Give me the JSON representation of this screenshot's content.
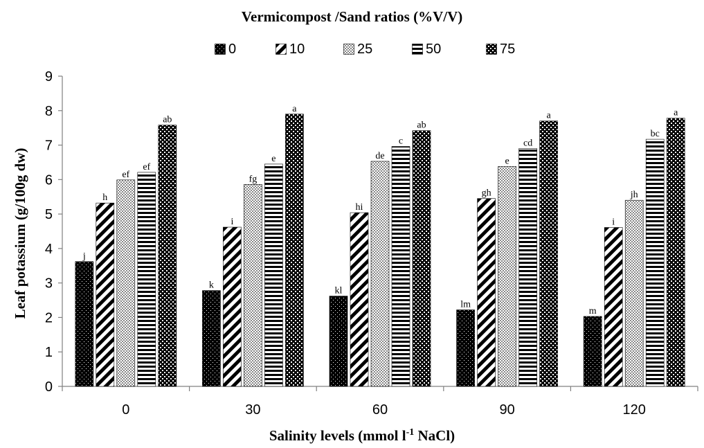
{
  "chart_data": {
    "type": "bar",
    "title": "Vermicompost /Sand ratios (%V/V)",
    "xlabel": "Salinity levels (mmol l-1 NaCl)",
    "xlabel_parts": [
      "Salinity levels (mmol l",
      "-1",
      " NaCl)"
    ],
    "ylabel": "Leaf potassium (g/100g dw)",
    "ylim": [
      0,
      9
    ],
    "yticks": [
      "0",
      "1",
      "2",
      "3",
      "4",
      "5",
      "6",
      "7",
      "8",
      "9"
    ],
    "categories": [
      "0",
      "30",
      "60",
      "90",
      "120"
    ],
    "legend_position": "top",
    "grid": false,
    "series": [
      {
        "name": "0",
        "pattern": "black-dots",
        "values": [
          3.62,
          2.78,
          2.62,
          2.22,
          2.03
        ],
        "labels": [
          "j",
          "k",
          "kl",
          "lm",
          "m"
        ]
      },
      {
        "name": "10",
        "pattern": "diagonal-stripes",
        "values": [
          5.32,
          4.62,
          5.04,
          5.45,
          4.61
        ],
        "labels": [
          "h",
          "i",
          "hi",
          "gh",
          "i"
        ]
      },
      {
        "name": "25",
        "pattern": "gray-checker",
        "values": [
          5.99,
          5.86,
          6.53,
          6.38,
          5.4
        ],
        "labels": [
          "ef",
          "fg",
          "de",
          "e",
          "jh"
        ]
      },
      {
        "name": "50",
        "pattern": "horizontal-stripes",
        "values": [
          6.21,
          6.45,
          6.96,
          6.9,
          7.17
        ],
        "labels": [
          "ef",
          "e",
          "c",
          "cd",
          "bc"
        ]
      },
      {
        "name": "75",
        "pattern": "black-checker",
        "values": [
          7.58,
          7.9,
          7.42,
          7.7,
          7.78
        ],
        "labels": [
          "ab",
          "a",
          "ab",
          "a",
          "a"
        ]
      }
    ],
    "colors": {
      "ink": "#000000",
      "background": "#ffffff",
      "axis": "#808080"
    }
  }
}
